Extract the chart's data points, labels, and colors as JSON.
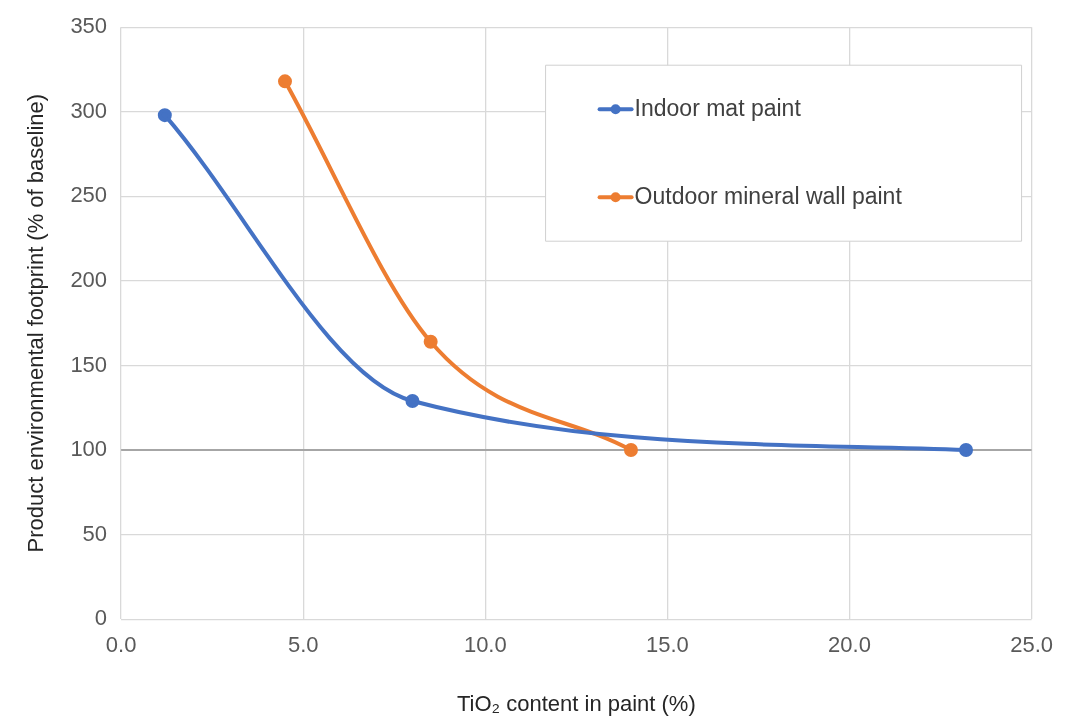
{
  "chart_data": {
    "type": "line",
    "xlabel": "TiO₂ content in paint (%)",
    "ylabel": "Product environmental footprint (% of baseline)",
    "series": [
      {
        "name": "Indoor mat paint",
        "color": "#4472c4",
        "x": [
          1.2,
          8.0,
          23.2
        ],
        "values": [
          298,
          129,
          100
        ]
      },
      {
        "name": "Outdoor mineral wall paint",
        "color": "#ed7d31",
        "x": [
          4.5,
          8.5,
          14.0
        ],
        "values": [
          318,
          164,
          100
        ]
      }
    ],
    "xlim": [
      0,
      25
    ],
    "xticks": [
      {
        "value": 0,
        "label": "0.0"
      },
      {
        "value": 5,
        "label": "5.0"
      },
      {
        "value": 10,
        "label": "10.0"
      },
      {
        "value": 15,
        "label": "15.0"
      },
      {
        "value": 20,
        "label": "20.0"
      },
      {
        "value": 25,
        "label": "25.0"
      }
    ],
    "ylim": [
      0,
      350
    ],
    "yticks": [
      0,
      50,
      100,
      150,
      200,
      250,
      300,
      350
    ],
    "ref_lines": [
      {
        "axis": "y",
        "value": 100,
        "color": "#a6a6a6"
      }
    ],
    "grid": true,
    "legend": "top right",
    "marker": "circle",
    "line_style": "solid"
  }
}
